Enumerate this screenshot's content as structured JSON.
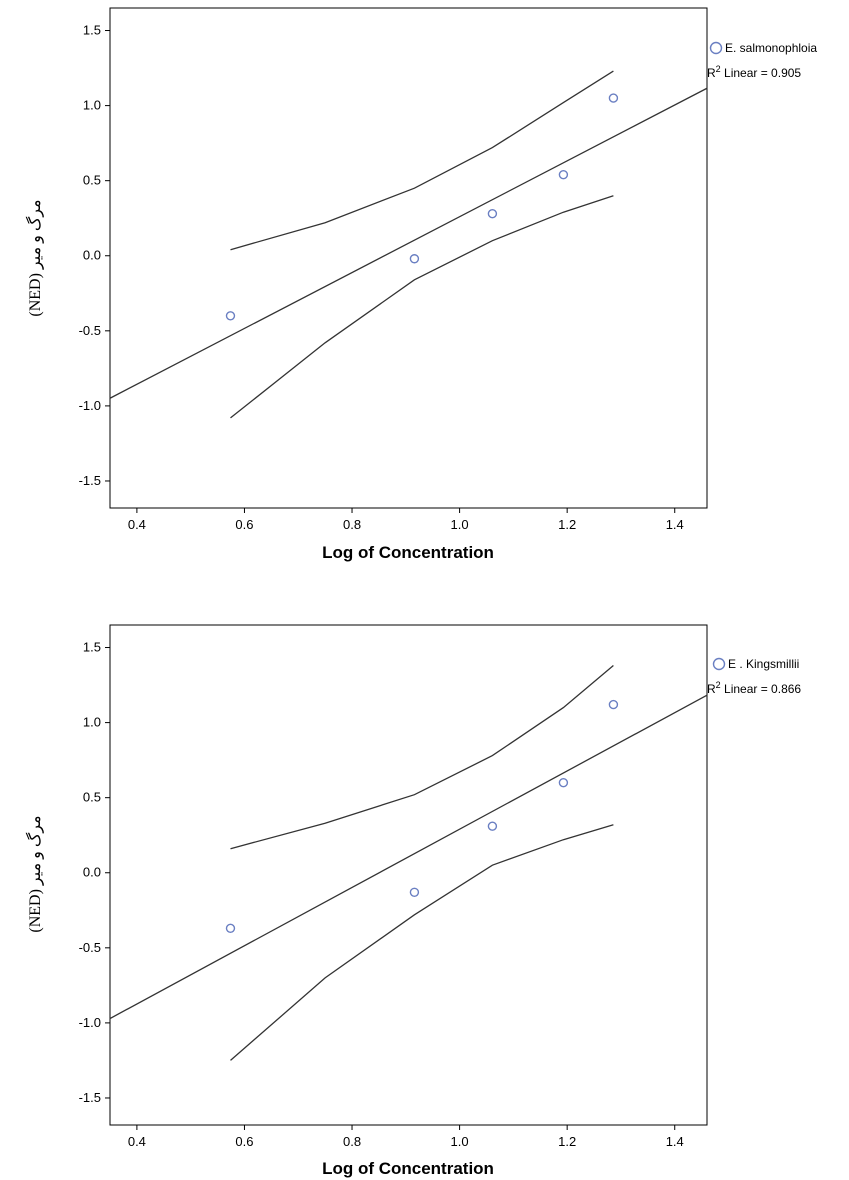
{
  "chart_data": [
    {
      "type": "scatter",
      "title": "",
      "xlabel": "Log of Concentration",
      "ylabel": "(NED) مرگ و میر",
      "xlim": [
        0.35,
        1.46
      ],
      "ylim": [
        -1.68,
        1.65
      ],
      "x_ticks": [
        "0.4",
        "0.6",
        "0.8",
        "1.0",
        "1.2",
        "1.4"
      ],
      "y_ticks": [
        "1.5",
        "1.0",
        "0.5",
        "0.0",
        "-0.5",
        "-1.0",
        "-1.5"
      ],
      "legend": {
        "placement": "right",
        "series_label": "E. salmonophloia",
        "fit_label_prefix": "R",
        "fit_label_sup": "2",
        "fit_label_suffix": " Linear = 0.905"
      },
      "series": [
        {
          "name": "E. salmonophloia",
          "x": [
            0.574,
            0.916,
            1.061,
            1.193,
            1.286
          ],
          "y": [
            -0.4,
            -0.02,
            0.28,
            0.54,
            1.05
          ]
        }
      ],
      "fit_line": {
        "slope": 1.86,
        "intercept": -1.6
      },
      "ci_upper": {
        "x": [
          0.574,
          0.75,
          0.916,
          1.061,
          1.193,
          1.286
        ],
        "y": [
          0.04,
          0.22,
          0.45,
          0.72,
          1.02,
          1.23
        ]
      },
      "ci_lower": {
        "x": [
          0.574,
          0.75,
          0.916,
          1.061,
          1.193,
          1.286
        ],
        "y": [
          -1.08,
          -0.58,
          -0.16,
          0.1,
          0.29,
          0.4
        ]
      },
      "grid": false
    },
    {
      "type": "scatter",
      "title": "",
      "xlabel": "Log of Concentration",
      "ylabel": "(NED) مرگ و میر",
      "xlim": [
        0.35,
        1.46
      ],
      "ylim": [
        -1.68,
        1.65
      ],
      "x_ticks": [
        "0.4",
        "0.6",
        "0.8",
        "1.0",
        "1.2",
        "1.4"
      ],
      "y_ticks": [
        "1.5",
        "1.0",
        "0.5",
        "0.0",
        "-0.5",
        "-1.0",
        "-1.5"
      ],
      "legend": {
        "placement": "right",
        "series_label": "E . Kingsmillii",
        "fit_label_prefix": "R",
        "fit_label_sup": "2",
        "fit_label_suffix": " Linear = 0.866"
      },
      "series": [
        {
          "name": "E . Kingsmillii",
          "x": [
            0.574,
            0.916,
            1.061,
            1.193,
            1.286
          ],
          "y": [
            -0.37,
            -0.13,
            0.31,
            0.6,
            1.12
          ]
        }
      ],
      "fit_line": {
        "slope": 1.94,
        "intercept": -1.65
      },
      "ci_upper": {
        "x": [
          0.574,
          0.75,
          0.916,
          1.061,
          1.193,
          1.286
        ],
        "y": [
          0.16,
          0.33,
          0.52,
          0.78,
          1.1,
          1.38
        ]
      },
      "ci_lower": {
        "x": [
          0.574,
          0.75,
          0.916,
          1.061,
          1.193,
          1.286
        ],
        "y": [
          -1.25,
          -0.7,
          -0.28,
          0.05,
          0.22,
          0.32
        ]
      },
      "grid": false
    }
  ]
}
